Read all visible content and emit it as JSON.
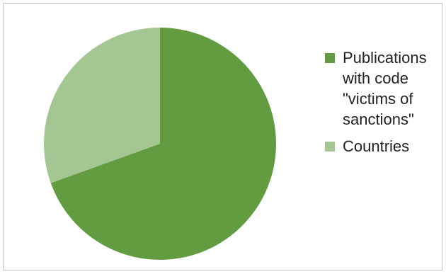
{
  "chart_data": {
    "type": "pie",
    "title": "",
    "series": [
      {
        "values": [
          69.5,
          30.5
        ],
        "categories": [
          "Publications with code \"victims of sanctions\"",
          "Countries"
        ]
      }
    ],
    "slices": [
      {
        "label": "Publications with code \"victims of sanctions\"",
        "value": 69.5,
        "color": "#639c40"
      },
      {
        "label": "Countries",
        "value": 30.5,
        "color": "#a4c693"
      }
    ],
    "legend_position": "right",
    "start_angle_deg": 0,
    "direction": "clockwise"
  }
}
